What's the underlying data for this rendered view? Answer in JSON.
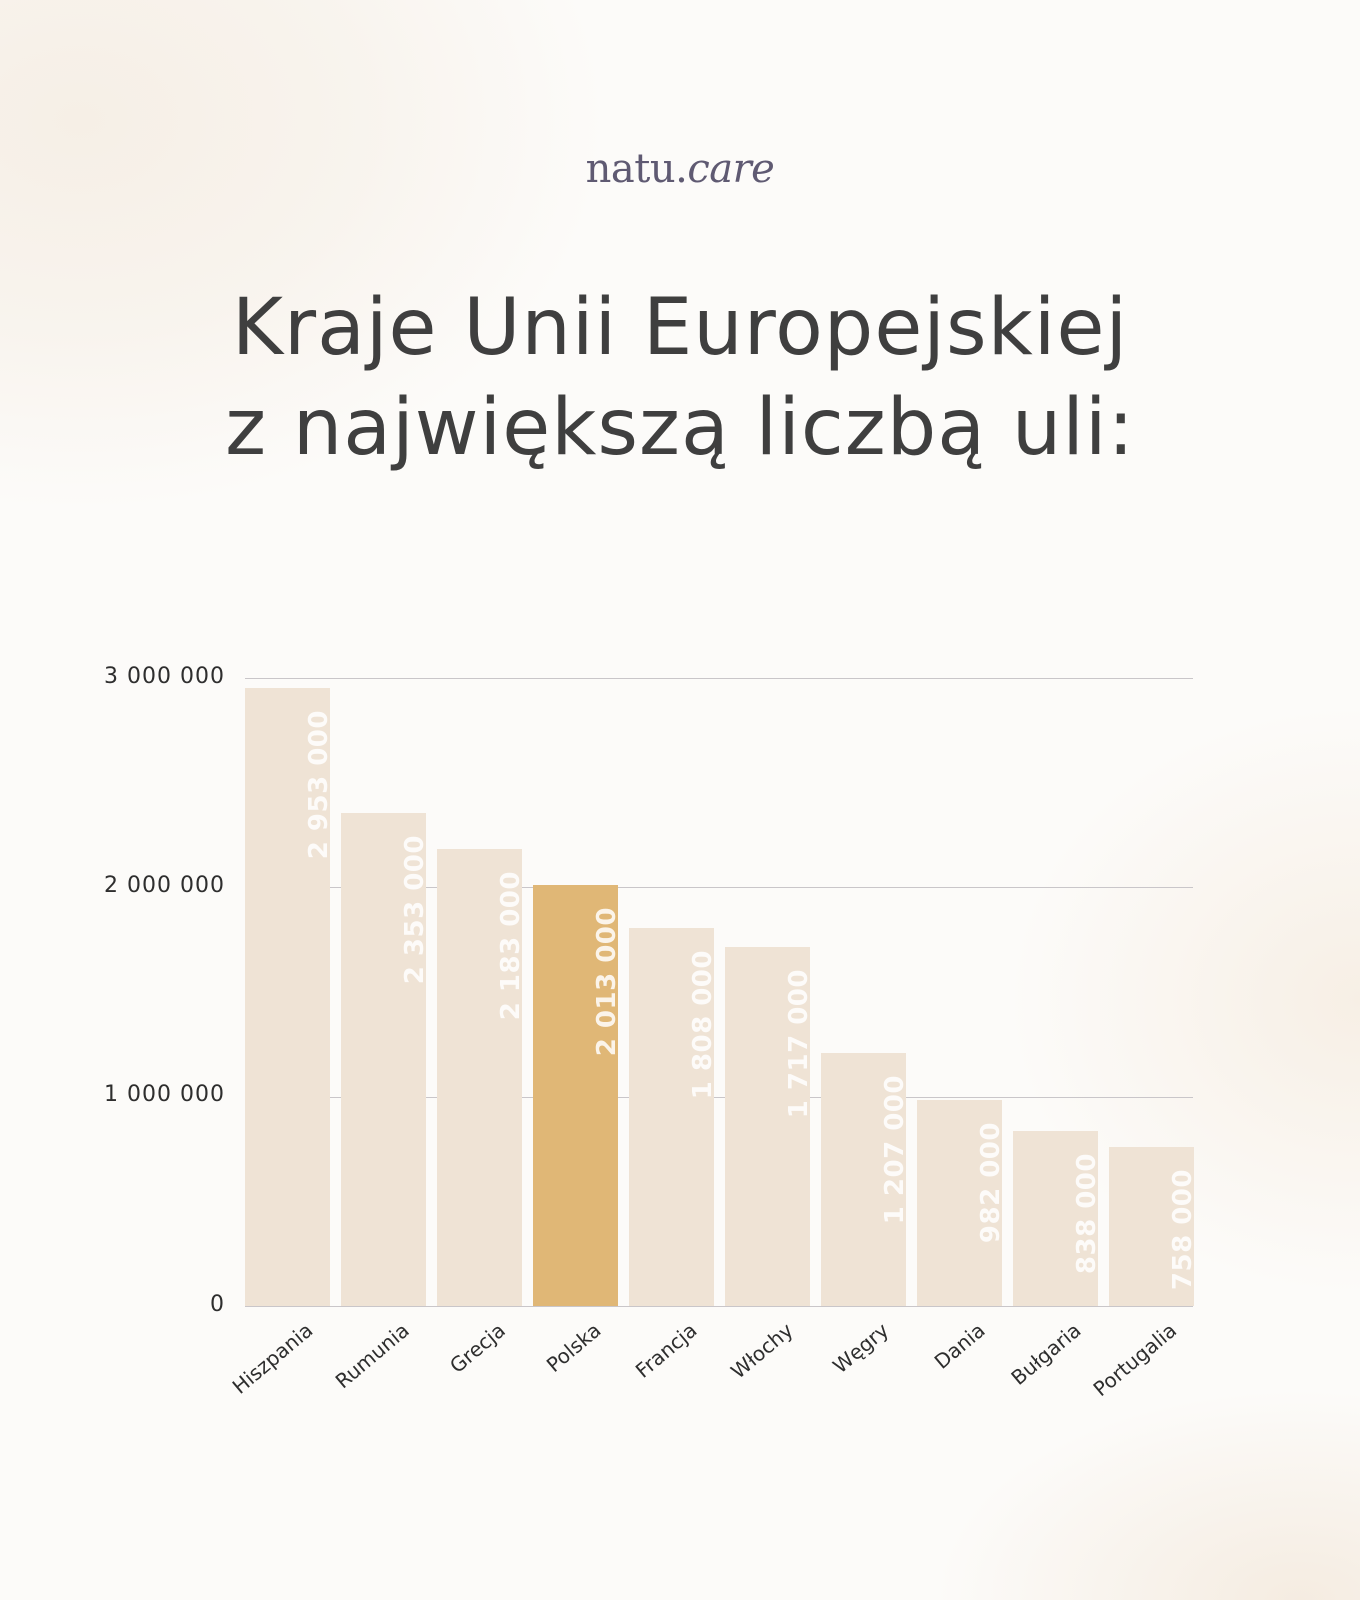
{
  "logo": {
    "brand_main": "natu.",
    "brand_italic": "care"
  },
  "title": {
    "line1": "Kraje Unii Europejskiej",
    "line2": "z największą liczbą uli:"
  },
  "y_ticks": [
    "3 000 000",
    "2 000 000",
    "1 000 000",
    "0"
  ],
  "colors": {
    "bar": "#efe3d5",
    "highlight": "#e0b776",
    "text": "#3f3f3f",
    "logo": "#5f5a72"
  },
  "bars": [
    {
      "country": "Hiszpania",
      "value_label": "2 953 000"
    },
    {
      "country": "Rumunia",
      "value_label": "2 353 000"
    },
    {
      "country": "Grecja",
      "value_label": "2 183 000"
    },
    {
      "country": "Polska",
      "value_label": "2 013 000"
    },
    {
      "country": "Francja",
      "value_label": "1 808 000"
    },
    {
      "country": "Włochy",
      "value_label": "1 717 000"
    },
    {
      "country": "Węgry",
      "value_label": "1 207 000"
    },
    {
      "country": "Dania",
      "value_label": "982 000"
    },
    {
      "country": "Bułgaria",
      "value_label": "838 000"
    },
    {
      "country": "Portugalia",
      "value_label": "758 000"
    }
  ],
  "chart_data": {
    "type": "bar",
    "title": "Kraje Unii Europejskiej z największą liczbą uli:",
    "categories": [
      "Hiszpania",
      "Rumunia",
      "Grecja",
      "Polska",
      "Francja",
      "Włochy",
      "Węgry",
      "Dania",
      "Bułgaria",
      "Portugalia"
    ],
    "values": [
      2953000,
      2353000,
      2183000,
      2013000,
      1808000,
      1717000,
      1207000,
      982000,
      838000,
      758000
    ],
    "highlighted": "Polska",
    "xlabel": "",
    "ylabel": "",
    "ylim": [
      0,
      3000000
    ],
    "yticks": [
      0,
      1000000,
      2000000,
      3000000
    ],
    "grid": true,
    "data_labels": "inside bars, rotated vertical",
    "legend": null
  }
}
